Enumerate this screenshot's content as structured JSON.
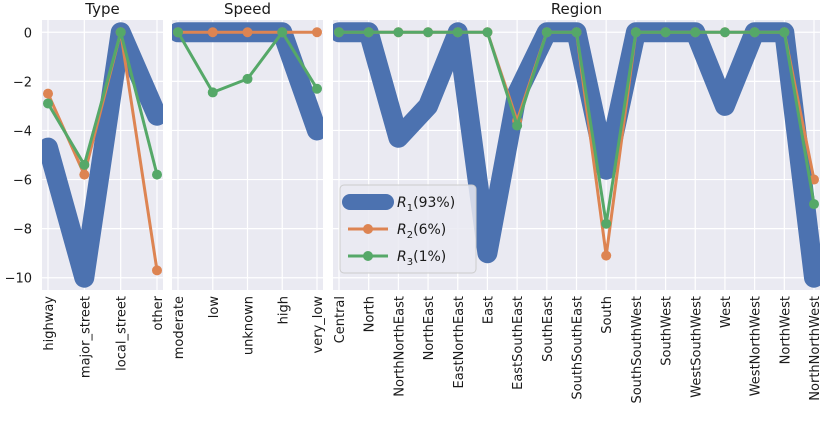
{
  "chart_data": {
    "type": "line",
    "ylim": [
      -10.5,
      0.5
    ],
    "yticks": [
      0,
      -2,
      -4,
      -6,
      -8,
      -10
    ],
    "grid": true,
    "legend_placement": "lower-left of Region panel",
    "series": [
      {
        "name": "R",
        "sub": "1",
        "suffix": "(93%)",
        "color": "#4c72b0",
        "style": "thick-band"
      },
      {
        "name": "R",
        "sub": "2",
        "suffix": "(6%)",
        "color": "#dd8452",
        "style": "line-marker"
      },
      {
        "name": "R",
        "sub": "3",
        "suffix": "(1%)",
        "color": "#55a868",
        "style": "line-marker"
      }
    ],
    "panels": [
      {
        "title": "Type",
        "categories": [
          "highway",
          "major_street",
          "local_street",
          "other"
        ],
        "values": [
          [
            -4.7,
            -10.0,
            0.0,
            -3.4
          ],
          [
            -2.5,
            -5.8,
            0.0,
            -9.7
          ],
          [
            -2.9,
            -5.4,
            0.0,
            -5.8
          ]
        ]
      },
      {
        "title": "Speed",
        "categories": [
          "moderate",
          "low",
          "unknown",
          "high",
          "very_low"
        ],
        "values": [
          [
            0.0,
            0.0,
            0.0,
            0.0,
            -4.0
          ],
          [
            0.0,
            0.0,
            0.0,
            0.0,
            0.0
          ],
          [
            0.0,
            -2.45,
            -1.9,
            0.0,
            -2.3
          ]
        ]
      },
      {
        "title": "Region",
        "categories": [
          "Central",
          "North",
          "NorthNorthEast",
          "NorthEast",
          "EastNorthEast",
          "East",
          "EastSouthEast",
          "SouthEast",
          "SouthSouthEast",
          "South",
          "SouthSouthWest",
          "SouthWest",
          "WestSouthWest",
          "West",
          "WestNorthWest",
          "NorthWest",
          "NorthNorthWest"
        ],
        "values": [
          [
            0.0,
            0.0,
            -4.3,
            -3.0,
            0.0,
            -9.0,
            -2.5,
            0.0,
            0.0,
            -5.6,
            0.0,
            0.0,
            0.0,
            -3.0,
            0.0,
            0.0,
            -10.0
          ],
          [
            0.0,
            0.0,
            0.0,
            0.0,
            0.0,
            0.0,
            -3.6,
            0.0,
            0.0,
            -9.1,
            0.0,
            0.0,
            0.0,
            0.0,
            0.0,
            0.0,
            -6.0
          ],
          [
            0.0,
            0.0,
            0.0,
            0.0,
            0.0,
            0.0,
            -3.8,
            0.0,
            0.0,
            -7.8,
            0.0,
            0.0,
            0.0,
            0.0,
            0.0,
            0.0,
            -7.0
          ]
        ]
      }
    ]
  }
}
